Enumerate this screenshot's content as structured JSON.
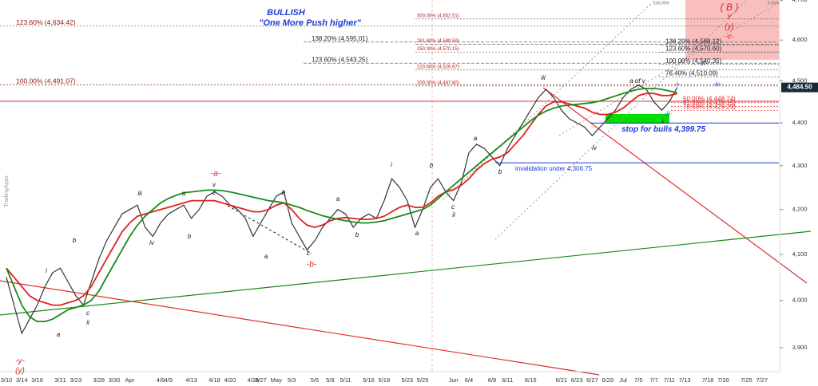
{
  "chart_data": {
    "type": "line",
    "title": "BULLISH",
    "subtitle": "\"One More Push higher\"",
    "watermark": "TradingApps",
    "log": true,
    "ylim": [
      3850,
      4700
    ],
    "yticks": [
      {
        "value": 4700,
        "label": "4,700"
      },
      {
        "value": 4600,
        "label": "4,600"
      },
      {
        "value": 4500,
        "label": "4,500"
      },
      {
        "value": 4400,
        "label": "4,400"
      },
      {
        "value": 4300,
        "label": "4,300"
      },
      {
        "value": 4200,
        "label": "4,200"
      },
      {
        "value": 4100,
        "label": "4,100"
      },
      {
        "value": 4000,
        "label": "4,000"
      },
      {
        "value": 3900,
        "label": "3,900"
      }
    ],
    "last_price": {
      "value": 4484.5,
      "label": "4,484.50"
    },
    "categories": [
      "3/10",
      null,
      "3/14",
      null,
      "3/16",
      null,
      null,
      "3/21",
      null,
      "3/23",
      null,
      null,
      "3/28",
      null,
      "3/30",
      null,
      "Apr",
      null,
      null,
      null,
      "4/6",
      "4/9",
      null,
      null,
      "4/13",
      null,
      null,
      "4/18",
      null,
      "4/20",
      null,
      null,
      "4/25",
      "4/27",
      null,
      "May",
      null,
      "5/3",
      null,
      null,
      "5/5",
      null,
      "5/9",
      null,
      "5/11",
      null,
      null,
      "5/16",
      null,
      "5/18",
      null,
      null,
      "5/23",
      null,
      "5/25",
      null,
      null,
      null,
      "Jun",
      null,
      "6/4",
      null,
      null,
      "6/8",
      null,
      "6/11",
      null,
      null,
      "6/15",
      null,
      null,
      null,
      "6/21",
      null,
      "6/23",
      null,
      "6/27",
      null,
      "6/29",
      null,
      "Jul",
      null,
      "7/5",
      null,
      "7/7",
      null,
      "7/11",
      null,
      "7/13",
      null,
      null,
      "7/18",
      null,
      "7/20",
      null,
      null,
      "7/25",
      null,
      "7/27",
      null
    ],
    "series": [
      {
        "color": "#333333",
        "values": [
          4050,
          3990,
          3930,
          3960,
          3990,
          4030,
          4060,
          4070,
          4040,
          4010,
          3990,
          4040,
          4090,
          4130,
          4160,
          4190,
          4200,
          4210,
          4160,
          4140,
          4170,
          4190,
          4200,
          4210,
          4180,
          4200,
          4230,
          4240,
          4230,
          4210,
          4200,
          4180,
          4140,
          4170,
          4200,
          4230,
          4240,
          4170,
          4140,
          4110,
          4130,
          4160,
          4180,
          4200,
          4190,
          4160,
          4180,
          4190,
          4180,
          4220,
          4270,
          4250,
          4220,
          4160,
          4200,
          4250,
          4270,
          4240,
          4220,
          4260,
          4330,
          4350,
          4340,
          4320,
          4300,
          4340,
          4370,
          4400,
          4430,
          4460,
          4480,
          4460,
          4430,
          4410,
          4400,
          4390,
          4370,
          4390,
          4410,
          4430,
          4460,
          4480,
          4490,
          4480,
          4450,
          4430,
          4450,
          4484.5,
          null,
          null,
          null,
          null,
          null,
          null,
          null,
          null,
          null,
          null,
          null,
          null
        ]
      },
      {
        "color": "#e02020",
        "values": [
          4070,
          4050,
          4030,
          4010,
          4000,
          3995,
          3990,
          3990,
          3995,
          4000,
          4010,
          4030,
          4060,
          4090,
          4120,
          4150,
          4170,
          4185,
          4190,
          4195,
          4200,
          4205,
          4210,
          4215,
          4220,
          4220,
          4220,
          4220,
          4215,
          4210,
          4205,
          4200,
          4195,
          4195,
          4200,
          4210,
          4215,
          4200,
          4180,
          4165,
          4160,
          4165,
          4175,
          4180,
          4182,
          4180,
          4178,
          4178,
          4180,
          4185,
          4195,
          4205,
          4210,
          4205,
          4205,
          4215,
          4230,
          4240,
          4245,
          4255,
          4270,
          4290,
          4305,
          4315,
          4320,
          4330,
          4350,
          4370,
          4395,
          4420,
          4440,
          4450,
          4450,
          4445,
          4440,
          4435,
          4425,
          4420,
          4420,
          4425,
          4435,
          4450,
          4465,
          4470,
          4470,
          4465,
          4465,
          4470,
          null,
          null,
          null,
          null,
          null,
          null,
          null,
          null,
          null,
          null,
          null,
          null
        ]
      },
      {
        "color": "#1a8a1a",
        "values": [
          4070,
          4030,
          3990,
          3965,
          3955,
          3955,
          3960,
          3970,
          3980,
          3985,
          3990,
          4000,
          4020,
          4050,
          4080,
          4110,
          4140,
          4165,
          4185,
          4200,
          4215,
          4225,
          4232,
          4238,
          4240,
          4242,
          4244,
          4244,
          4243,
          4240,
          4236,
          4232,
          4228,
          4224,
          4220,
          4218,
          4215,
          4210,
          4205,
          4198,
          4192,
          4186,
          4182,
          4178,
          4175,
          4172,
          4170,
          4170,
          4172,
          4175,
          4180,
          4185,
          4190,
          4195,
          4200,
          4210,
          4225,
          4240,
          4255,
          4270,
          4285,
          4300,
          4315,
          4330,
          4345,
          4360,
          4375,
          4390,
          4405,
          4418,
          4428,
          4435,
          4440,
          4442,
          4444,
          4446,
          4448,
          4452,
          4458,
          4464,
          4470,
          4476,
          4480,
          4482,
          4482,
          4480,
          4476,
          4472,
          null,
          null,
          null,
          null,
          null,
          null,
          null,
          null,
          null,
          null,
          null,
          null
        ]
      }
    ],
    "levels": [
      {
        "label": "stop for bulls 4,399.75",
        "value": 4399.75,
        "color": "#1e3cd6"
      },
      {
        "label": "invalidation under 4,306.75",
        "value": 4306.75,
        "color": "#1e3cd6"
      }
    ],
    "fib_levels": [
      {
        "label": "123.60% (4,634.42)",
        "value": 4634.42,
        "color": "#8b1a1a"
      },
      {
        "label": "100.00% (4,491.07)",
        "value": 4491.07,
        "color": "#8b1a1a"
      },
      {
        "label": "300.00% (4,652.51)",
        "value": 4652.51,
        "color": "#b22222"
      },
      {
        "label": "261.80% (4,589.59)",
        "value": 4589.59,
        "color": "#b22222"
      },
      {
        "label": "250.00% (4,570.15)",
        "value": 4570.15,
        "color": "#b22222"
      },
      {
        "label": "223.60% (4,526.67)",
        "value": 4526.67,
        "color": "#b22222"
      },
      {
        "label": "200.00% (4,487.80)",
        "value": 4487.8,
        "color": "#b22222"
      },
      {
        "label": "138.20% (4,595.01)",
        "value": 4595.01,
        "color": "#222222"
      },
      {
        "label": "123.60% (4,543.25)",
        "value": 4543.25,
        "color": "#222222"
      },
      {
        "label": "138.20% (4,588.12)",
        "value": 4588.12,
        "color": "#222222"
      },
      {
        "label": "123.60% (4,570.60)",
        "value": 4570.6,
        "color": "#222222"
      },
      {
        "label": "100.00% (4,540.35)",
        "value": 4540.35,
        "color": "#222222"
      },
      {
        "label": "76.40% (4,510.09)",
        "value": 4510.09,
        "color": "#222222"
      },
      {
        "label": "50.00% (4,448.74)",
        "value": 4448.74,
        "color": "#e03030"
      },
      {
        "label": "61.80% (4,439.15)",
        "value": 4439.15,
        "color": "#e03030"
      },
      {
        "label": "78.60% (4,429.29)",
        "value": 4429.29,
        "color": "#e03030"
      }
    ],
    "annotations": [
      "-y-",
      "(y)",
      "i",
      "a",
      "b",
      "c",
      "ii",
      "iii",
      "iv",
      "a",
      "b",
      "-a-",
      "v",
      "c",
      "b",
      "a",
      "c",
      "-b-",
      "a",
      "b",
      "i",
      "a",
      "b",
      "c",
      "ii",
      "a",
      "b",
      "iii",
      "iv",
      "a of v",
      "c",
      "-i-",
      "-ii-",
      "-iii-",
      "-iv-",
      "( B )",
      "Y",
      "(y)",
      "-c-",
      "100.00%",
      "0.00%"
    ]
  }
}
